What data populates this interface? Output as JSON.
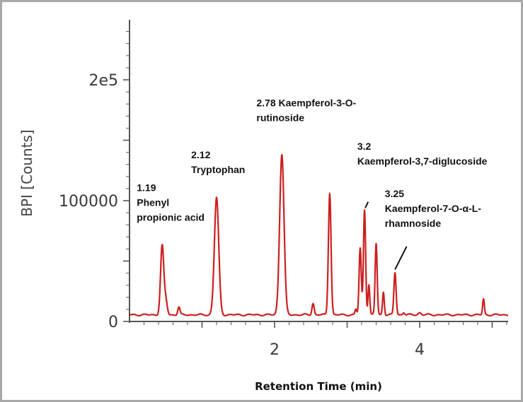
{
  "chart_data": {
    "type": "line",
    "title": "",
    "xlabel": "Retention Time (min)",
    "ylabel": "BPI [Counts]",
    "xlim": [
      0,
      5.35
    ],
    "ylim": [
      0,
      250000
    ],
    "x_ticks": [
      {
        "value": 2,
        "label": "2"
      },
      {
        "value": 4,
        "label": "4"
      }
    ],
    "y_ticks": [
      {
        "value": 0,
        "label": "0"
      },
      {
        "value": 100000,
        "label": "100000"
      },
      {
        "value": 200000,
        "label": "2e5"
      }
    ],
    "grid": false,
    "line_color": "#cc1f1f",
    "baseline": 5500,
    "peaks": [
      {
        "x": 0.45,
        "height": 57000,
        "width": 0.022
      },
      {
        "x": 0.5,
        "height": 12000,
        "width": 0.02
      },
      {
        "x": 0.68,
        "height": 6500,
        "width": 0.015
      },
      {
        "x": 1.2,
        "height": 97000,
        "width": 0.03
      },
      {
        "x": 2.1,
        "height": 133000,
        "width": 0.03
      },
      {
        "x": 2.53,
        "height": 9500,
        "width": 0.015
      },
      {
        "x": 2.76,
        "height": 101000,
        "width": 0.018
      },
      {
        "x": 3.12,
        "height": 4500,
        "width": 0.012
      },
      {
        "x": 3.18,
        "height": 55000,
        "width": 0.015
      },
      {
        "x": 3.24,
        "height": 87000,
        "width": 0.015
      },
      {
        "x": 3.3,
        "height": 25000,
        "width": 0.012
      },
      {
        "x": 3.4,
        "height": 59000,
        "width": 0.014
      },
      {
        "x": 3.5,
        "height": 19000,
        "width": 0.012
      },
      {
        "x": 3.66,
        "height": 35000,
        "width": 0.015
      },
      {
        "x": 3.78,
        "height": 2000,
        "width": 0.015
      },
      {
        "x": 4.0,
        "height": 1800,
        "width": 0.02
      },
      {
        "x": 4.88,
        "height": 13000,
        "width": 0.012
      }
    ],
    "annotations": [
      {
        "lines": [
          "1.19",
          "Phenyl",
          "propionic acid"
        ],
        "x": 0.1,
        "y": 108000
      },
      {
        "lines": [
          "2.12",
          "Tryptophan"
        ],
        "x": 0.85,
        "y": 135000
      },
      {
        "lines": [
          "2.78 Kaempferol-3-O-",
          "rutinoside"
        ],
        "x": 1.75,
        "y": 178000
      },
      {
        "lines": [
          "3.2",
          "Kaempferol-3,7-diglucoside"
        ],
        "x": 3.14,
        "y": 142000
      },
      {
        "lines": [
          "3.25",
          "Kaempferol-7-O-α-L-",
          "rhamnoside"
        ],
        "x": 3.52,
        "y": 103000
      }
    ],
    "arrows": [
      {
        "from": [
          3.29,
          99000
        ],
        "to": [
          3.25,
          94000
        ]
      },
      {
        "from": [
          3.82,
          62000
        ],
        "to": [
          3.66,
          43000
        ]
      }
    ]
  }
}
